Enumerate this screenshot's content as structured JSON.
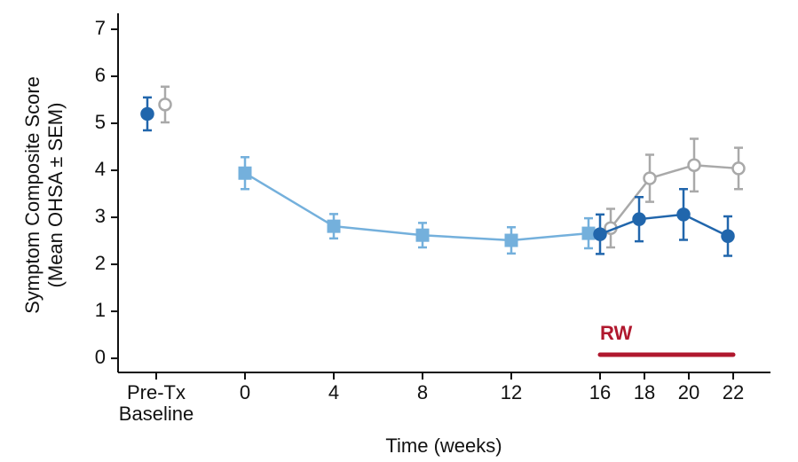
{
  "chart_data": {
    "type": "scatter",
    "ylabel": [
      "Symptom Composite Score",
      "(Mean OHSA ± SEM)"
    ],
    "xlabel": "Time (weeks)",
    "xlim": [
      -5.72,
      23.68
    ],
    "ylim": [
      -0.3,
      7.34
    ],
    "xticks": [
      {
        "value": -4,
        "label": [
          "Pre-Tx",
          "Baseline"
        ]
      },
      0,
      4,
      8,
      12,
      16,
      18,
      20,
      22
    ],
    "yticks": [
      0,
      1,
      2,
      3,
      4,
      5,
      6,
      7
    ],
    "series": [
      {
        "color": "#2166ac",
        "marker": "circle",
        "filled": true,
        "line": false,
        "x": [
          -4.4
        ],
        "values": [
          5.2
        ],
        "errors": [
          0.35
        ]
      },
      {
        "color": "#a9a9a9",
        "marker": "circle",
        "filled": false,
        "line": false,
        "x": [
          -3.6
        ],
        "values": [
          5.4
        ],
        "errors": [
          0.38
        ]
      },
      {
        "color": "#74b0dc",
        "marker": "square",
        "filled": true,
        "line": true,
        "x": [
          0,
          4,
          8,
          12,
          15.48
        ],
        "values": [
          3.94,
          2.81,
          2.62,
          2.51,
          2.66
        ],
        "errors": [
          0.34,
          0.26,
          0.26,
          0.28,
          0.32
        ]
      },
      {
        "color": "#a9a9a9",
        "marker": "circle",
        "filled": false,
        "line": true,
        "x": [
          16.48,
          18.24,
          20.24,
          22.24
        ],
        "values": [
          2.77,
          3.83,
          4.11,
          4.04
        ],
        "errors": [
          0.41,
          0.5,
          0.56,
          0.44
        ]
      },
      {
        "color": "#2166ac",
        "marker": "circle",
        "filled": true,
        "line": true,
        "x": [
          16,
          17.76,
          19.76,
          21.76
        ],
        "values": [
          2.64,
          2.96,
          3.06,
          2.6
        ],
        "errors": [
          0.42,
          0.47,
          0.54,
          0.42
        ]
      }
    ],
    "annotation": {
      "text": "RW",
      "x": [
        16,
        22
      ],
      "color": "#b0182e"
    }
  }
}
